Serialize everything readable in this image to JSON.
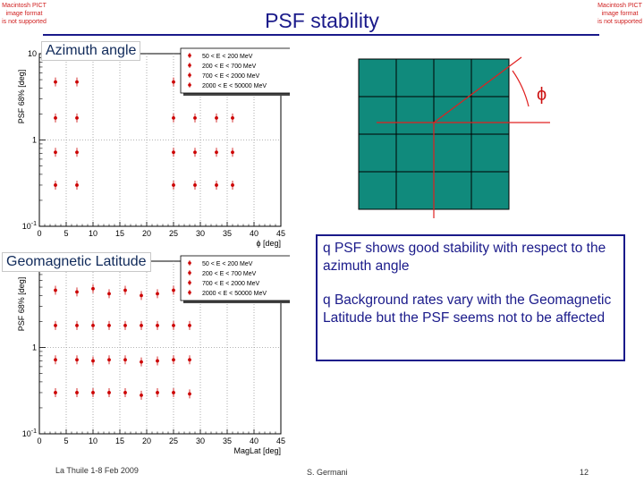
{
  "title": "PSF stability",
  "pict_notice": [
    "Macintosh PICT",
    "image format",
    "is not supported"
  ],
  "section_labels": {
    "azimuth": "Azimuth angle",
    "geomag": "Geomagnetic Latitude"
  },
  "bullets": [
    "PSF shows good stability with respect to the azimuth angle",
    "Background rates vary with the Geomagnetic Latitude but the PSF seems not to be affected"
  ],
  "bullet_symbol": "q",
  "diagram": {
    "phi_label": "ϕ",
    "grid_color": "#108a7c",
    "line_color": "#e02020"
  },
  "footer": {
    "left": "La Thuile 1-8 Feb 2009",
    "center": "S. Germani",
    "page": "12"
  },
  "colors": {
    "title": "#1a1a8a",
    "marker": "#cc0000"
  },
  "chart_data": [
    {
      "type": "scatter",
      "title": "",
      "xlabel": "ϕ [deg]",
      "ylabel": "PSF 68% [deg]",
      "xlim": [
        0,
        45
      ],
      "ylim": [
        0.1,
        10
      ],
      "ylog": true,
      "grid": true,
      "legend": "top-right",
      "x_ticks": [
        "0",
        "5",
        "10",
        "15",
        "20",
        "25",
        "30",
        "35",
        "40",
        "45"
      ],
      "y_ticks": [
        "10^-1",
        "1",
        "10"
      ],
      "series": [
        {
          "name": "50 < E < 200 MeV",
          "x": [
            3,
            7,
            25,
            29,
            33,
            36
          ],
          "y": [
            4.7,
            4.7,
            4.7,
            4.7,
            4.7,
            4.7
          ]
        },
        {
          "name": "200 < E < 700 MeV",
          "x": [
            3,
            7,
            25,
            29,
            33,
            36
          ],
          "y": [
            1.8,
            1.8,
            1.8,
            1.8,
            1.8,
            1.8
          ]
        },
        {
          "name": "700 < E < 2000 MeV",
          "x": [
            3,
            7,
            25,
            29,
            33,
            36
          ],
          "y": [
            0.72,
            0.72,
            0.72,
            0.72,
            0.72,
            0.72
          ]
        },
        {
          "name": "2000 < E < 50000 MeV",
          "x": [
            3,
            7,
            25,
            29,
            33,
            36
          ],
          "y": [
            0.3,
            0.3,
            0.3,
            0.3,
            0.3,
            0.3
          ]
        }
      ]
    },
    {
      "type": "scatter",
      "title": "",
      "xlabel": "MagLat [deg]",
      "ylabel": "PSF 68% [deg]",
      "xlim": [
        0,
        45
      ],
      "ylim": [
        0.1,
        10
      ],
      "ylog": true,
      "grid": true,
      "legend": "top-right",
      "x_ticks": [
        "0",
        "5",
        "10",
        "15",
        "20",
        "25",
        "30",
        "35",
        "40",
        "45"
      ],
      "y_ticks": [
        "10^-1",
        "1",
        "10"
      ],
      "series": [
        {
          "name": "50 < E < 200 MeV",
          "x": [
            3,
            7,
            10,
            13,
            16,
            19,
            22,
            25,
            28
          ],
          "y": [
            4.6,
            4.4,
            4.8,
            4.2,
            4.6,
            4.0,
            4.2,
            4.6,
            4.4
          ]
        },
        {
          "name": "200 < E < 700 MeV",
          "x": [
            3,
            7,
            10,
            13,
            16,
            19,
            22,
            25,
            28
          ],
          "y": [
            1.8,
            1.8,
            1.8,
            1.8,
            1.8,
            1.8,
            1.8,
            1.8,
            1.8
          ]
        },
        {
          "name": "700 < E < 2000 MeV",
          "x": [
            3,
            7,
            10,
            13,
            16,
            19,
            22,
            25,
            28
          ],
          "y": [
            0.72,
            0.72,
            0.7,
            0.72,
            0.72,
            0.68,
            0.7,
            0.72,
            0.72
          ]
        },
        {
          "name": "2000 < E < 50000 MeV",
          "x": [
            3,
            7,
            10,
            13,
            16,
            19,
            22,
            25,
            28
          ],
          "y": [
            0.3,
            0.3,
            0.3,
            0.3,
            0.3,
            0.28,
            0.3,
            0.3,
            0.29
          ]
        }
      ]
    }
  ]
}
